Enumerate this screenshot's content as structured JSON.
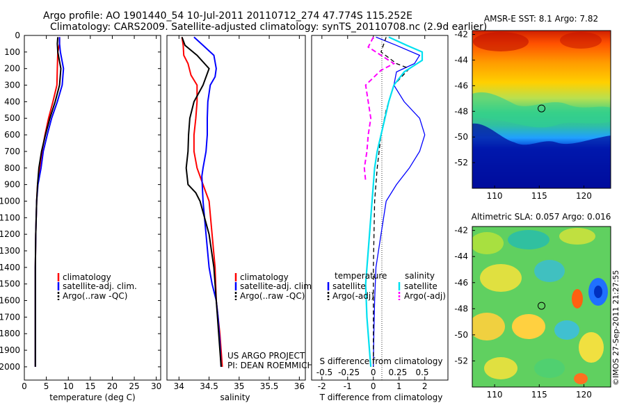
{
  "header": {
    "title_line1": "Argo profile: AO 1901440_54 10-Jul-2011 20110712_274 47.774S 115.252E",
    "title_line2": "Climatology: CARS2009. Satellite-adjusted climatology: synTS_20110708.nc (2.9d earlier)"
  },
  "colors": {
    "climatology": "#ff0000",
    "satellite": "#0000ff",
    "argo": "#000000",
    "sat_salinity": "#00e0f0",
    "argo_salinity": "#ff00ff"
  },
  "chart_data": [
    {
      "type": "line",
      "panel": "temperature",
      "xlabel": "temperature (deg C)",
      "xlim": [
        0,
        31
      ],
      "xticks": [
        0,
        5,
        10,
        15,
        20,
        25,
        30
      ],
      "ylim": [
        0,
        2080
      ],
      "yticks": [
        0,
        100,
        200,
        300,
        400,
        500,
        600,
        700,
        800,
        900,
        1000,
        1100,
        1200,
        1300,
        1400,
        1500,
        1600,
        1700,
        1800,
        1900,
        2000
      ],
      "legend": [
        "climatology",
        "satellite-adj. clim.",
        "Argo(..raw -QC)"
      ],
      "series": [
        {
          "name": "climatology",
          "color": "#ff0000",
          "x": [
            8.0,
            8.0,
            7.6,
            7.5,
            7.4,
            6.5,
            5.5,
            4.7,
            4.0,
            3.5,
            3.0,
            2.8,
            2.6,
            2.5,
            2.5,
            2.5,
            2.5
          ],
          "y": [
            10,
            50,
            100,
            200,
            300,
            400,
            500,
            600,
            700,
            800,
            900,
            1000,
            1200,
            1400,
            1600,
            1800,
            2000
          ]
        },
        {
          "name": "satellite-adj. clim.",
          "color": "#0000ff",
          "x": [
            8.0,
            8.0,
            8.2,
            8.9,
            8.6,
            7.5,
            6.2,
            5.2,
            4.3,
            3.8,
            3.1,
            2.8,
            2.6,
            2.5,
            2.5,
            2.5,
            2.5
          ],
          "y": [
            10,
            50,
            100,
            200,
            300,
            400,
            500,
            600,
            700,
            800,
            900,
            1000,
            1200,
            1400,
            1600,
            1800,
            2000
          ]
        },
        {
          "name": "Argo(..raw -QC)",
          "color": "#000000",
          "x": [
            7.6,
            7.5,
            7.6,
            8.3,
            8.0,
            7.0,
            5.8,
            4.8,
            3.9,
            3.3,
            3.0,
            2.8,
            2.6,
            2.5,
            2.5,
            2.5,
            2.5
          ],
          "y": [
            10,
            50,
            100,
            200,
            300,
            400,
            500,
            600,
            700,
            800,
            900,
            1000,
            1200,
            1400,
            1600,
            1800,
            2000
          ]
        }
      ]
    },
    {
      "type": "line",
      "panel": "salinity",
      "xlabel": "salinity",
      "xlim": [
        33.8,
        36.1
      ],
      "xticks": [
        34,
        34.5,
        35,
        35.5,
        36
      ],
      "ylim": [
        0,
        2080
      ],
      "legend": [
        "climatology",
        "satellite-adj. clim.",
        "Argo(..raw -QC)"
      ],
      "annotation_lines": [
        "US ARGO PROJECT",
        "PI: DEAN ROEMMICH"
      ],
      "series": [
        {
          "name": "climatology",
          "color": "#ff0000",
          "x": [
            34.05,
            34.07,
            34.08,
            34.15,
            34.2,
            34.3,
            34.3,
            34.28,
            34.25,
            34.25,
            34.3,
            34.4,
            34.5,
            34.55,
            34.6,
            34.62,
            34.65,
            34.68,
            34.7,
            34.72
          ],
          "y": [
            10,
            60,
            120,
            170,
            240,
            300,
            400,
            500,
            600,
            700,
            800,
            900,
            1000,
            1200,
            1400,
            1600,
            1700,
            1800,
            1900,
            2000
          ]
        },
        {
          "name": "satellite-adj. clim.",
          "color": "#0000ff",
          "x": [
            34.25,
            34.4,
            34.58,
            34.62,
            34.6,
            34.52,
            34.48,
            34.47,
            34.47,
            34.45,
            34.4,
            34.38,
            34.4,
            34.45,
            34.5,
            34.55,
            34.62,
            34.65,
            34.68,
            34.7
          ],
          "y": [
            10,
            60,
            120,
            200,
            250,
            300,
            400,
            500,
            600,
            700,
            800,
            850,
            1000,
            1200,
            1400,
            1500,
            1600,
            1700,
            1850,
            2000
          ]
        },
        {
          "name": "Argo(..raw -QC)",
          "color": "#000000",
          "x": [
            34.05,
            34.1,
            34.3,
            34.5,
            34.4,
            34.25,
            34.18,
            34.16,
            34.15,
            34.12,
            34.15,
            34.28,
            34.35,
            34.5,
            34.58,
            34.62,
            34.66,
            34.7
          ],
          "y": [
            10,
            60,
            120,
            200,
            300,
            400,
            500,
            600,
            700,
            800,
            900,
            950,
            1000,
            1200,
            1400,
            1600,
            1800,
            2000
          ]
        }
      ]
    },
    {
      "type": "line",
      "panel": "difference",
      "xlabel": "T difference from climatology",
      "xlim": [
        -2.4,
        2.9
      ],
      "xticks": [
        -2,
        -1,
        0,
        1,
        2
      ],
      "s_label": "S difference from climatology",
      "s_ticks": [
        {
          "label": "-0.5",
          "t": -1.9
        },
        {
          "label": "-0.25",
          "t": -0.95
        },
        {
          "label": "0",
          "t": 0
        },
        {
          "label": "0.25",
          "t": 0.95
        },
        {
          "label": "0.5",
          "t": 1.9
        }
      ],
      "legend_temperature": "temperature",
      "legend_salinity": "salinity",
      "legend": [
        "satellite",
        "Argo(-adj)",
        "satellite",
        "Argo(-adj)"
      ],
      "series": [
        {
          "name": "satellite",
          "color": "#0000ff",
          "width": 1.3,
          "x": [
            0.1,
            0.9,
            1.8,
            1.6,
            0.9,
            0.8,
            1.2,
            1.8,
            2.0,
            1.8,
            1.4,
            0.9,
            0.5,
            0.3,
            0.1,
            0.05,
            0.02,
            0.0
          ],
          "y": [
            10,
            60,
            120,
            170,
            220,
            300,
            400,
            500,
            600,
            700,
            800,
            900,
            1000,
            1200,
            1400,
            1600,
            1800,
            2000
          ]
        },
        {
          "name": "Argo(-adj)",
          "color": "#000000",
          "width": 1.3,
          "dash": "6,4",
          "x": [
            0.5,
            0.3,
            0.9,
            1.4,
            1.1,
            0.8,
            0.5,
            0.3,
            0.15,
            0.05,
            0.0,
            0.0,
            0.0
          ],
          "y": [
            10,
            100,
            170,
            200,
            250,
            300,
            450,
            600,
            800,
            1000,
            1400,
            1800,
            2000
          ]
        },
        {
          "name": "satellite",
          "color": "#00e0f0",
          "width": 2.2,
          "x": [
            0.6,
            1.3,
            1.9,
            1.9,
            1.2,
            0.8,
            0.6,
            0.45,
            0.3,
            0.15,
            0.05,
            -0.05,
            -0.2,
            -0.3,
            -0.25,
            -0.15,
            -0.1
          ],
          "y": [
            10,
            60,
            100,
            150,
            220,
            300,
            400,
            500,
            600,
            700,
            800,
            1000,
            1300,
            1500,
            1700,
            1900,
            2000
          ]
        },
        {
          "name": "Argo(-adj)",
          "color": "#ff00ff",
          "width": 2.0,
          "dash": "7,4",
          "x": [
            0.0,
            -0.2,
            0.8,
            0.3,
            -0.3,
            -0.2,
            -0.1,
            -0.2,
            -0.25,
            -0.35,
            -0.3
          ],
          "y": [
            10,
            70,
            170,
            210,
            300,
            400,
            500,
            600,
            700,
            800,
            880
          ]
        }
      ]
    },
    {
      "type": "heatmap",
      "panel": "sst",
      "title": "AMSR-E SST: 8.1 Argo: 7.82",
      "xlim": [
        107.5,
        123
      ],
      "ylim": [
        -54,
        -41.7
      ],
      "xticks": [
        110,
        115,
        120
      ],
      "yticks": [
        -42,
        -44,
        -46,
        -48,
        -50,
        -52
      ],
      "marker": {
        "lon": 115.252,
        "lat": -47.774
      }
    },
    {
      "type": "heatmap",
      "panel": "sla",
      "title": "Altimetric SLA: 0.057 Argo: 0.016",
      "xlim": [
        107.5,
        123
      ],
      "ylim": [
        -54,
        -41.7
      ],
      "xticks": [
        110,
        115,
        120
      ],
      "yticks": [
        -42,
        -44,
        -46,
        -48,
        -50,
        -52
      ],
      "marker": {
        "lon": 115.252,
        "lat": -47.774
      }
    }
  ],
  "footer": {
    "side_text": "©IMOS 27-Sep-2011 21:27:55"
  }
}
